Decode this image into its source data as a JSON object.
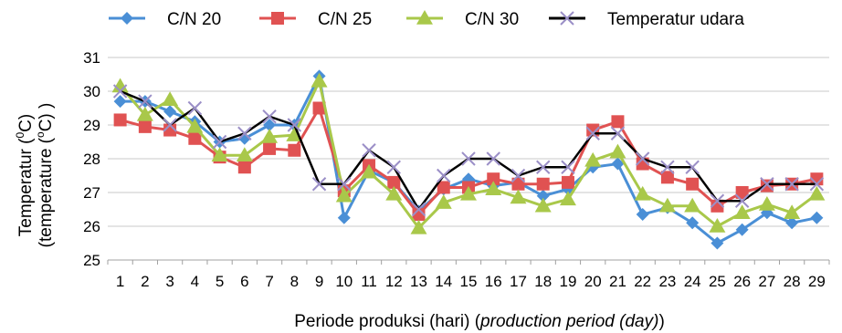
{
  "chart_data": {
    "type": "line",
    "title": "",
    "xlabel_plain": "Periode produksi (hari) (",
    "xlabel_italic": "production period (day)",
    "xlabel_end": ")",
    "ylabel_line1_pre": "Temperatur (",
    "ylabel_line1_sup": "0",
    "ylabel_line1_post": "C)",
    "ylabel_line2_pre": "(temperature (",
    "ylabel_line2_sup": "o",
    "ylabel_line2_post": "C) )",
    "ylim": [
      25,
      31
    ],
    "yticks": [
      "25",
      "26",
      "27",
      "28",
      "29",
      "30",
      "31"
    ],
    "grid": true,
    "legend_position": "top",
    "categories": [
      "1",
      "2",
      "3",
      "4",
      "5",
      "6",
      "7",
      "8",
      "9",
      "10",
      "11",
      "12",
      "13",
      "14",
      "15",
      "16",
      "17",
      "18",
      "19",
      "20",
      "21",
      "22",
      "23",
      "24",
      "25",
      "26",
      "27",
      "28",
      "29"
    ],
    "series": [
      {
        "name": "C/N 20",
        "color": "#4a8fd6",
        "marker": "diamond",
        "values": [
          29.7,
          29.7,
          29.4,
          29.1,
          28.5,
          28.6,
          29.0,
          29.0,
          30.45,
          26.25,
          27.65,
          27.3,
          26.45,
          27.1,
          27.4,
          27.2,
          27.3,
          26.9,
          27.1,
          27.75,
          27.85,
          26.35,
          26.55,
          26.1,
          25.5,
          25.9,
          26.4,
          26.1,
          26.25
        ]
      },
      {
        "name": "C/N 25",
        "color": "#e05252",
        "marker": "square",
        "values": [
          29.15,
          28.95,
          28.85,
          28.6,
          28.05,
          27.75,
          28.3,
          28.25,
          29.5,
          27.05,
          27.8,
          27.3,
          26.35,
          27.15,
          27.15,
          27.4,
          27.25,
          27.25,
          27.3,
          28.85,
          29.1,
          27.85,
          27.45,
          27.25,
          26.6,
          27.0,
          27.2,
          27.25,
          27.4
        ]
      },
      {
        "name": "C/N 30",
        "color": "#a9c84a",
        "marker": "triangle",
        "values": [
          30.15,
          29.3,
          29.75,
          28.95,
          28.1,
          28.1,
          28.65,
          28.7,
          30.3,
          26.9,
          27.6,
          26.95,
          25.95,
          26.7,
          26.95,
          27.1,
          26.85,
          26.6,
          26.8,
          27.95,
          28.2,
          26.95,
          26.6,
          26.6,
          26.0,
          26.4,
          26.65,
          26.4,
          26.95
        ]
      },
      {
        "name": "Temperatur udara",
        "color": "#000000",
        "marker": "x",
        "marker_color": "#9b8fc7",
        "values": [
          30.0,
          29.7,
          29.0,
          29.5,
          28.5,
          28.75,
          29.25,
          29.0,
          27.25,
          27.25,
          28.25,
          27.75,
          26.5,
          27.5,
          28.0,
          28.0,
          27.5,
          27.75,
          27.75,
          28.75,
          28.75,
          28.0,
          27.75,
          27.75,
          26.75,
          26.75,
          27.25,
          27.25,
          27.25
        ]
      }
    ]
  }
}
